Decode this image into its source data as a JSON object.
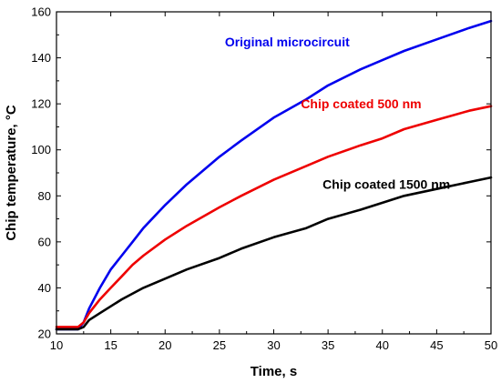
{
  "chart_data": {
    "type": "line",
    "title": "",
    "xlabel": "Time, s",
    "ylabel": "Chip temperature, °C",
    "xlim": [
      10,
      50
    ],
    "ylim": [
      20,
      160
    ],
    "xticks": [
      10,
      15,
      20,
      25,
      30,
      35,
      40,
      45,
      50
    ],
    "yticks": [
      20,
      40,
      60,
      80,
      100,
      120,
      140,
      160
    ],
    "grid": false,
    "series": [
      {
        "name": "Original microcircuit",
        "color": "#0000ee",
        "x": [
          10,
          11,
          12,
          12.5,
          13,
          14,
          15,
          16,
          17,
          18,
          20,
          22,
          25,
          27,
          30,
          33,
          35,
          38,
          40,
          42,
          45,
          48,
          50
        ],
        "y": [
          22,
          22,
          22,
          25,
          31,
          40,
          48,
          54,
          60,
          66,
          76,
          85,
          97,
          104,
          114,
          122,
          128,
          135,
          139,
          143,
          148,
          153,
          156
        ]
      },
      {
        "name": "Chip coated 500 nm",
        "color": "#ee0000",
        "x": [
          10,
          11,
          12,
          12.5,
          13,
          14,
          15,
          16,
          17,
          18,
          20,
          22,
          25,
          27,
          30,
          33,
          35,
          38,
          40,
          42,
          45,
          48,
          50
        ],
        "y": [
          23,
          23,
          23,
          25,
          29,
          35,
          40,
          45,
          50,
          54,
          61,
          67,
          75,
          80,
          87,
          93,
          97,
          102,
          105,
          109,
          113,
          117,
          119
        ]
      },
      {
        "name": "Chip coated 1500 nm",
        "color": "#000000",
        "x": [
          10,
          11,
          12,
          12.5,
          13,
          14,
          15,
          16,
          18,
          20,
          22,
          25,
          27,
          30,
          33,
          35,
          38,
          40,
          42,
          45,
          48,
          50
        ],
        "y": [
          22,
          22,
          22,
          23,
          26,
          29,
          32,
          35,
          40,
          44,
          48,
          53,
          57,
          62,
          66,
          70,
          74,
          77,
          80,
          83,
          86,
          88
        ]
      }
    ],
    "labels": [
      {
        "text": "Original microcircuit",
        "color": "#0000ee",
        "at_x": 25.5,
        "at_y": 145
      },
      {
        "text": "Chip coated 500 nm",
        "color": "#ee0000",
        "at_x": 32.5,
        "at_y": 118
      },
      {
        "text": "Chip coated 1500 nm",
        "color": "#000000",
        "at_x": 34.5,
        "at_y": 83
      }
    ]
  }
}
